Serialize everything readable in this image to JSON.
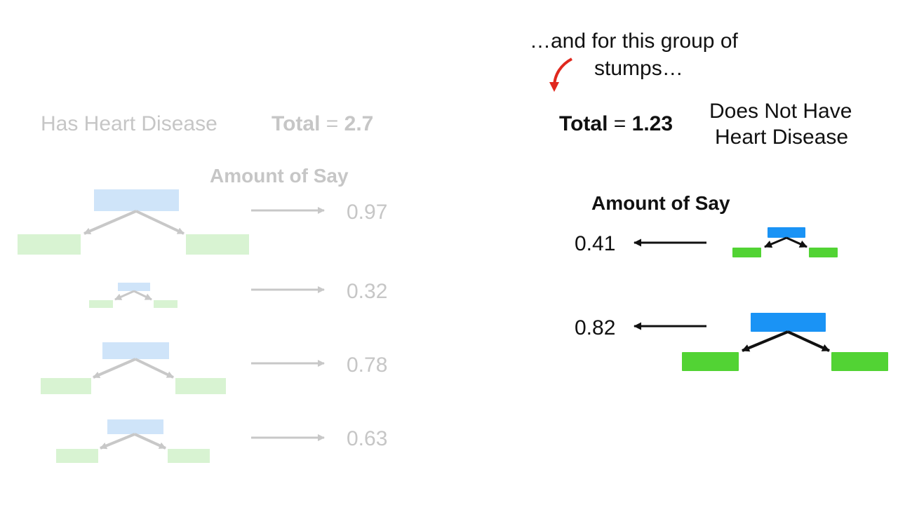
{
  "left_panel": {
    "title": "Has Heart Disease",
    "total_label": "Total",
    "total_eq": " = ",
    "total_value": "2.7",
    "amount_of_say_label": "Amount of Say",
    "stumps": [
      {
        "amount_of_say": "0.97"
      },
      {
        "amount_of_say": "0.32"
      },
      {
        "amount_of_say": "0.78"
      },
      {
        "amount_of_say": "0.63"
      }
    ]
  },
  "right_panel": {
    "caption_line1": "…and for this group of",
    "caption_line2": "stumps…",
    "total_label": "Total",
    "total_eq": " = ",
    "total_value": "1.23",
    "title_line1": "Does Not Have",
    "title_line2": "Heart Disease",
    "amount_of_say_label": "Amount of Say",
    "stumps": [
      {
        "amount_of_say": "0.41"
      },
      {
        "amount_of_say": "0.82"
      }
    ]
  },
  "colors": {
    "faded_root": "#cfe4f9",
    "faded_leaf": "#d8f3d2",
    "faded_line": "#c8c8c8",
    "faded_text": "#c6c6c6",
    "root": "#1a93f5",
    "leaf": "#52d334",
    "line": "#111111",
    "curve_arrow": "#e0281e"
  }
}
